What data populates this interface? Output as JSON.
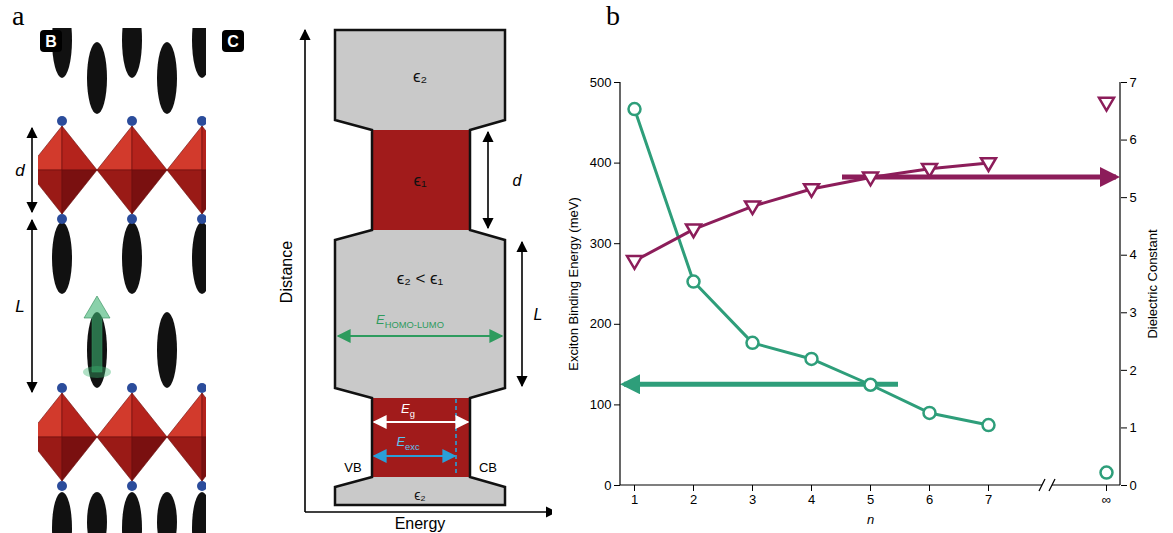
{
  "panel_a": {
    "letter": "a",
    "structure": {
      "label": "B",
      "d": "d",
      "L": "L"
    },
    "energy_diagram": {
      "label": "C",
      "y_axis": "Distance",
      "x_axis": "Energy",
      "layers": [
        "ϵ₂",
        "ϵ₁",
        "ϵ₂ < ϵ₁",
        "ϵ₂"
      ],
      "d": "d",
      "L": "L",
      "homo_lumo": {
        "text": "E",
        "sub": "HOMO-LUMO"
      },
      "gap": {
        "text": "E",
        "sub": "g"
      },
      "exciton": {
        "text": "E",
        "sub": "exc"
      },
      "vb": "VB",
      "cb": "CB"
    }
  },
  "chart_data": {
    "type": "line",
    "letter": "b",
    "x_label": "n",
    "categories": [
      "1",
      "2",
      "3",
      "4",
      "5",
      "6",
      "7",
      null,
      "∞"
    ],
    "ylim": [
      0,
      500
    ],
    "yticks": [
      0,
      100,
      200,
      300,
      400,
      500
    ],
    "y2lim": [
      0,
      7
    ],
    "y2ticks": [
      0,
      1,
      2,
      3,
      4,
      5,
      6,
      7
    ],
    "series": [
      {
        "name": "Exciton Binding Energy (meV)",
        "axis": "y",
        "color": "#2e9e7a",
        "marker": "circle",
        "line_style": "solid",
        "values": [
          467,
          253,
          177,
          157,
          125,
          90,
          75,
          null,
          16
        ]
      },
      {
        "name": "Dielectric Constant",
        "axis": "y2",
        "color": "#8c1d5a",
        "marker": "triangle-down",
        "line_style": "solid",
        "values": [
          3.9,
          4.45,
          4.85,
          5.15,
          5.35,
          5.5,
          5.6,
          null,
          6.65
        ]
      }
    ]
  }
}
